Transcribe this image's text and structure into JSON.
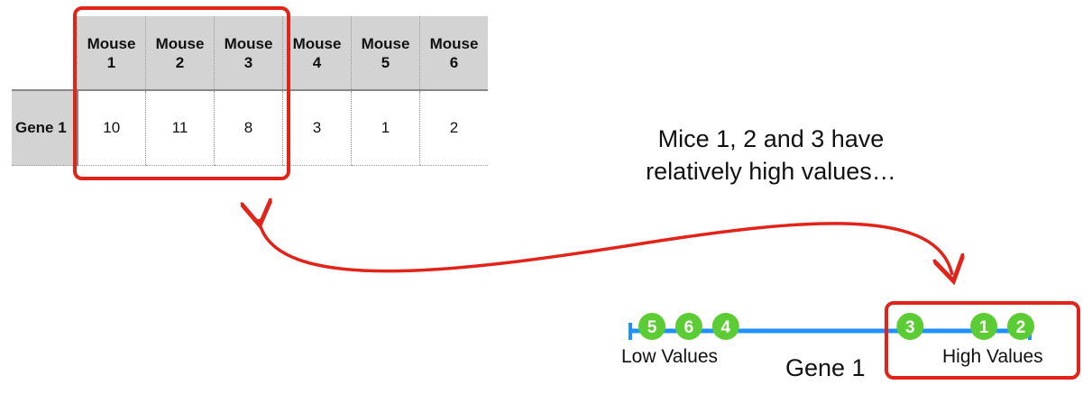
{
  "table": {
    "columns": [
      "Mouse 1",
      "Mouse 2",
      "Mouse 3",
      "Mouse 4",
      "Mouse 5",
      "Mouse 6"
    ],
    "rows": [
      {
        "label": "Gene 1",
        "values": [
          10,
          11,
          8,
          3,
          1,
          2
        ]
      }
    ]
  },
  "caption": {
    "line1": "Mice 1, 2 and 3 have",
    "line2": "relatively high values…"
  },
  "number_line": {
    "title": "Gene 1",
    "low_label": "Low Values",
    "high_label": "High Values",
    "points": [
      {
        "label": "5",
        "value": 1
      },
      {
        "label": "6",
        "value": 2
      },
      {
        "label": "4",
        "value": 3
      },
      {
        "label": "3",
        "value": 8
      },
      {
        "label": "1",
        "value": 10
      },
      {
        "label": "2",
        "value": 11
      }
    ],
    "line_color": "#1e90ff",
    "point_color": "#5ccc34"
  },
  "colors": {
    "highlight": "#e2231a",
    "header_bg": "#d3d3d3"
  }
}
